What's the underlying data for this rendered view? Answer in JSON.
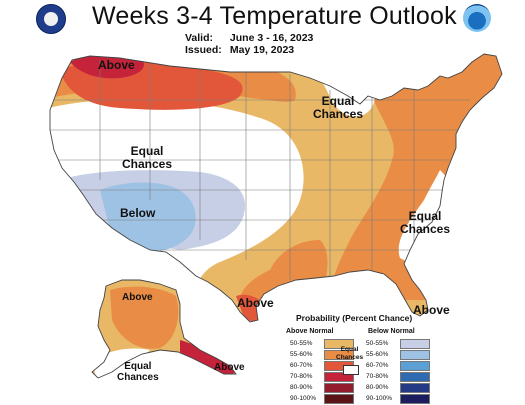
{
  "header": {
    "title": "Weeks 3-4 Temperature Outlook",
    "valid_label": "Valid:",
    "valid_value": "June 3 - 16, 2023",
    "issued_label": "Issued:",
    "issued_value": "May 19, 2023"
  },
  "logos": {
    "left": "doc-seal-icon",
    "right": "noaa-logo-icon"
  },
  "map_labels": {
    "nw_above": "Above",
    "north_ec_1": "Equal",
    "north_ec_2": "Chances",
    "west_ec_1": "Equal",
    "west_ec_2": "Chances",
    "sw_below": "Below",
    "se_ec_1": "Equal",
    "se_ec_2": "Chances",
    "fl_above": "Above",
    "ne_fl_above": "Above",
    "ak_above": "Above",
    "ak_ec_1": "Equal",
    "ak_ec_2": "Chances",
    "ak_se_above": "Above"
  },
  "legend": {
    "title": "Probability (Percent Chance)",
    "above_header": "Above Normal",
    "below_header": "Below Normal",
    "equal_chances_1": "Equal",
    "equal_chances_2": "Chances",
    "above": [
      {
        "label": "50-55%",
        "color": "#e8b866"
      },
      {
        "label": "55-60%",
        "color": "#e98c45"
      },
      {
        "label": "60-70%",
        "color": "#e2573a"
      },
      {
        "label": "70-80%",
        "color": "#c4233a"
      },
      {
        "label": "80-90%",
        "color": "#931d2d"
      },
      {
        "label": "90-100%",
        "color": "#5c1316"
      }
    ],
    "below": [
      {
        "label": "50-55%",
        "color": "#c7cfe6"
      },
      {
        "label": "55-60%",
        "color": "#9ec2e3"
      },
      {
        "label": "60-70%",
        "color": "#5aa0d4"
      },
      {
        "label": "70-80%",
        "color": "#2f6bb0"
      },
      {
        "label": "80-90%",
        "color": "#243a86"
      },
      {
        "label": "90-100%",
        "color": "#1c1d5e"
      }
    ]
  }
}
